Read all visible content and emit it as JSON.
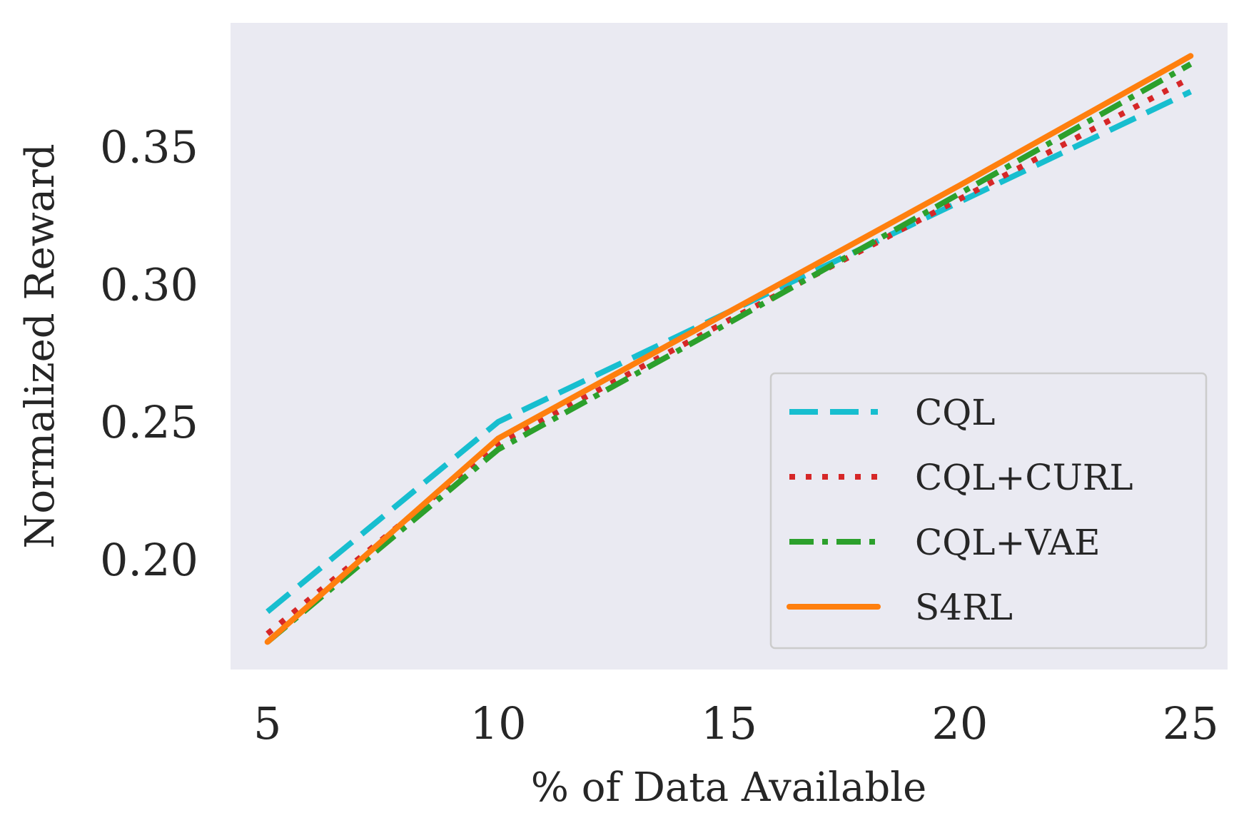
{
  "chart_data": {
    "type": "line",
    "title": "",
    "xlabel": "% of Data Available",
    "ylabel": "Normalized Reward",
    "xlim": [
      4.2,
      25.8
    ],
    "ylim": [
      0.16,
      0.395
    ],
    "xticks": [
      5,
      10,
      15,
      20,
      25
    ],
    "yticks": [
      0.2,
      0.25,
      0.3,
      0.35
    ],
    "ytick_labels": [
      "0.20",
      "0.25",
      "0.30",
      "0.35"
    ],
    "xtick_labels": [
      "5",
      "10",
      "15",
      "20",
      "25"
    ],
    "grid": false,
    "background": "#eaeaf2",
    "legend_position": "lower-right",
    "x": [
      5,
      10,
      15,
      20,
      25
    ],
    "series": [
      {
        "name": "CQL",
        "values": [
          0.181,
          0.25,
          0.29,
          0.33,
          0.37
        ],
        "color": "#17becf",
        "style": "dashed"
      },
      {
        "name": "CQL+CURL",
        "values": [
          0.173,
          0.242,
          0.287,
          0.331,
          0.375
        ],
        "color": "#d62728",
        "style": "dotted"
      },
      {
        "name": "CQL+VAE",
        "values": [
          0.17,
          0.24,
          0.286,
          0.333,
          0.38
        ],
        "color": "#2ca02c",
        "style": "dashdot"
      },
      {
        "name": "S4RL",
        "values": [
          0.17,
          0.244,
          0.29,
          0.336,
          0.383
        ],
        "color": "#ff7f0e",
        "style": "solid"
      }
    ]
  }
}
